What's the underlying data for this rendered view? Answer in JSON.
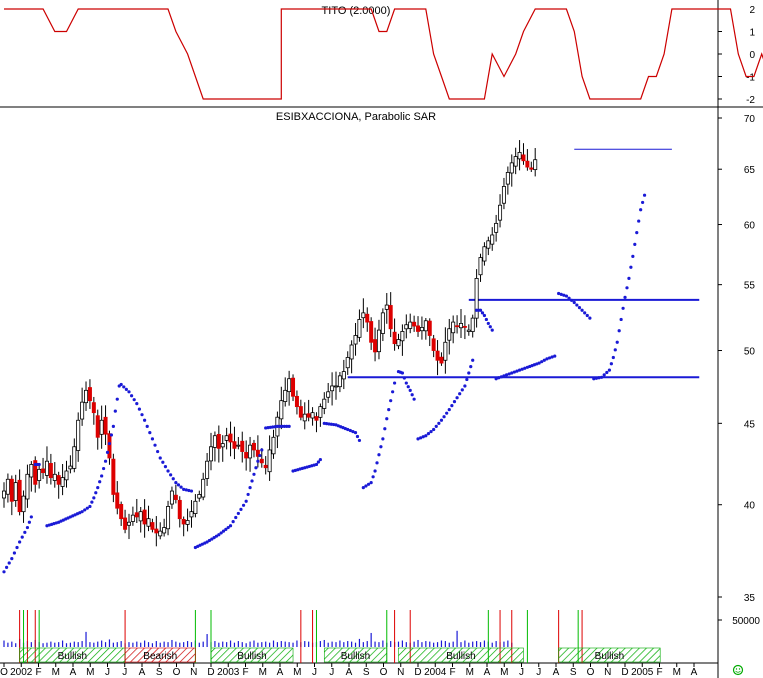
{
  "chart_data": [
    {
      "type": "line",
      "title": "TITO (2.0000)",
      "ylim": [
        -2.3,
        2.3
      ],
      "yticks": [
        "2",
        "1",
        "0",
        "-1",
        "-2"
      ],
      "grid": false,
      "series": [
        {
          "name": "",
          "color": "#cc0000",
          "points": [
            [
              0,
              2
            ],
            [
              10,
              2
            ],
            [
              13,
              1
            ],
            [
              16,
              1
            ],
            [
              19,
              2
            ],
            [
              42,
              2
            ],
            [
              44,
              1
            ],
            [
              47,
              0
            ],
            [
              51,
              -2
            ],
            [
              71,
              -2
            ],
            [
              71,
              2
            ],
            [
              94,
              2
            ],
            [
              96,
              1
            ],
            [
              98,
              1
            ],
            [
              100,
              2
            ],
            [
              108,
              2
            ],
            [
              110,
              0
            ],
            [
              112,
              -1
            ],
            [
              114,
              -2
            ],
            [
              123,
              -2
            ],
            [
              125,
              0
            ],
            [
              128,
              -1
            ],
            [
              131,
              0
            ],
            [
              133,
              1
            ],
            [
              136,
              2
            ],
            [
              144,
              2
            ],
            [
              146,
              1
            ],
            [
              148,
              -1
            ],
            [
              150,
              -2
            ],
            [
              163,
              -2
            ],
            [
              165,
              -1
            ],
            [
              167,
              -1
            ],
            [
              169,
              0
            ],
            [
              171,
              2
            ],
            [
              186,
              2
            ],
            [
              188,
              0
            ],
            [
              190,
              -1
            ],
            [
              192,
              -1
            ],
            [
              194,
              0
            ],
            [
              196,
              -1
            ],
            [
              198,
              -1
            ],
            [
              202,
              -2
            ],
            [
              214,
              -2
            ],
            [
              216,
              -1
            ],
            [
              218,
              2
            ],
            [
              227,
              2
            ],
            [
              227,
              -1
            ],
            [
              235,
              -1
            ],
            [
              238,
              -2
            ],
            [
              246,
              -2
            ],
            [
              248,
              -1
            ],
            [
              251,
              -1
            ],
            [
              255,
              2
            ],
            [
              274,
              2
            ]
          ]
        }
      ]
    },
    {
      "type": "candlestick",
      "title": "ESIBXACCIONA, Parabolic SAR",
      "ylabel": "",
      "ylim": [
        34,
        71
      ],
      "log_scale": true,
      "yticks": [
        "70",
        "65",
        "60",
        "55",
        "50",
        "45",
        "40",
        "35"
      ],
      "x_axis_labels": [
        "O",
        "2002",
        "F",
        "M",
        "A",
        "M",
        "J",
        "J",
        "A",
        "S",
        "O",
        "N",
        "D",
        "2003",
        "F",
        "M",
        "A",
        "M",
        "J",
        "J",
        "A",
        "S",
        "O",
        "N",
        "D",
        "2004",
        "F",
        "M",
        "A",
        "M",
        "J",
        "J",
        "A",
        "S",
        "O",
        "N",
        "D",
        "2005",
        "F",
        "M",
        "A"
      ],
      "x_axis_month_count": 43,
      "price_series": {
        "name": "",
        "colors": {
          "up": "#ffffff",
          "down": "#dd0000",
          "wick": "#000000"
        },
        "close_by_week": [
          40.8,
          41.5,
          40.2,
          41.3,
          39.6,
          40.5,
          41.8,
          42.4,
          41.2,
          42.1,
          41.9,
          42.6,
          41.6,
          41.8,
          41.2,
          41.6,
          42.0,
          42.3,
          43.5,
          45.2,
          46.4,
          47.2,
          46.5,
          45.7,
          44.1,
          45.2,
          44.3,
          42.8,
          40.6,
          39.8,
          39.2,
          38.6,
          39.0,
          39.4,
          39.3,
          39.6,
          38.9,
          39.2,
          38.6,
          38.4,
          38.5,
          38.7,
          39.9,
          40.8,
          40.3,
          39.2,
          38.9,
          39.1,
          39.6,
          40.2,
          40.6,
          41.5,
          42.6,
          43.5,
          44.2,
          43.4,
          43.7,
          44.2,
          43.8,
          43.4,
          43.6,
          43.2,
          42.8,
          43.6,
          43.3,
          42.9,
          42.5,
          42.2,
          43.3,
          44.1,
          45.4,
          46.5,
          47.2,
          48.0,
          46.8,
          46.1,
          45.4,
          45.6,
          45.4,
          45.7,
          45.2,
          46.1,
          46.6,
          47.1,
          47.5,
          47.5,
          48.2,
          48.5,
          49.5,
          50.4,
          51.1,
          52.3,
          52.8,
          52.1,
          50.6,
          49.9,
          51.5,
          52.8,
          53.4,
          51.6,
          50.5,
          50.8,
          51.4,
          51.9,
          52.1,
          51.8,
          51.4,
          51.7,
          52.2,
          51.1,
          50.0,
          49.3,
          49.1,
          50.6,
          51.6,
          52.1,
          51.8,
          52.0,
          51.7,
          51.5,
          52.4,
          55.5,
          57.2,
          58.1,
          58.6,
          59.1,
          60.1,
          61.7,
          63.4,
          64.7,
          65.6,
          66.2,
          66.6,
          65.8,
          65.2,
          65.0,
          65.9
        ]
      },
      "sar_series": {
        "name": "",
        "color": "#1a1ad6",
        "segments": [
          [
            [
              0,
              36.3
            ],
            [
              2,
              37.0
            ],
            [
              4,
              37.9
            ],
            [
              6,
              38.7
            ],
            [
              7,
              39.3
            ]
          ],
          [
            [
              8,
              42.4
            ],
            [
              9,
              42.4
            ]
          ],
          [
            [
              11,
              38.8
            ],
            [
              14,
              39.0
            ],
            [
              17,
              39.3
            ],
            [
              20,
              39.6
            ],
            [
              22,
              39.9
            ],
            [
              23,
              40.4
            ],
            [
              24,
              41.0
            ],
            [
              25,
              41.7
            ],
            [
              26,
              42.6
            ],
            [
              27,
              43.7
            ],
            [
              28,
              44.8
            ],
            [
              28.5,
              45.8
            ],
            [
              29,
              46.6
            ],
            [
              29.5,
              47.5
            ]
          ],
          [
            [
              30,
              47.6
            ],
            [
              32,
              47.1
            ],
            [
              34,
              46.3
            ],
            [
              36,
              45.2
            ],
            [
              38,
              44.0
            ],
            [
              40,
              42.8
            ],
            [
              42,
              42.0
            ],
            [
              44,
              41.3
            ],
            [
              46,
              40.9
            ],
            [
              48,
              40.8
            ]
          ],
          [
            [
              49,
              37.6
            ],
            [
              52,
              37.9
            ],
            [
              55,
              38.3
            ],
            [
              58,
              38.8
            ],
            [
              60,
              39.5
            ],
            [
              62,
              40.2
            ],
            [
              63,
              41.0
            ],
            [
              64,
              41.8
            ],
            [
              65,
              42.6
            ],
            [
              66,
              43.3
            ]
          ],
          [
            [
              67,
              44.7
            ],
            [
              70,
              44.8
            ],
            [
              73,
              44.8
            ]
          ],
          [
            [
              74,
              42.0
            ],
            [
              77,
              42.2
            ],
            [
              80,
              42.4
            ],
            [
              81,
              42.7
            ]
          ],
          [
            [
              82,
              45.0
            ],
            [
              85,
              44.9
            ],
            [
              88,
              44.6
            ],
            [
              90,
              44.4
            ],
            [
              91,
              43.9
            ]
          ],
          [
            [
              92,
              41.0
            ],
            [
              94,
              41.3
            ],
            [
              95,
              42.0
            ],
            [
              96,
              43.0
            ],
            [
              97,
              44.0
            ],
            [
              98,
              45.3
            ],
            [
              99,
              46.5
            ],
            [
              100,
              47.7
            ]
          ],
          [
            [
              101,
              48.5
            ],
            [
              102,
              48.4
            ],
            [
              103,
              47.7
            ],
            [
              104,
              47.2
            ],
            [
              105,
              46.6
            ]
          ],
          [
            [
              106,
              44.0
            ],
            [
              108,
              44.2
            ],
            [
              110,
              44.6
            ],
            [
              112,
              45.2
            ],
            [
              114,
              45.9
            ],
            [
              116,
              46.7
            ],
            [
              118,
              47.5
            ],
            [
              119,
              48.4
            ],
            [
              120,
              49.3
            ]
          ],
          [
            [
              121,
              53.0
            ],
            [
              122,
              53.0
            ],
            [
              123,
              52.6
            ],
            [
              124,
              52.0
            ],
            [
              125,
              51.5
            ]
          ],
          [
            [
              126,
              48.0
            ],
            [
              130,
              48.4
            ],
            [
              134,
              48.8
            ],
            [
              137,
              49.1
            ],
            [
              139,
              49.4
            ],
            [
              141,
              49.6
            ]
          ],
          [
            [
              142,
              54.3
            ],
            [
              144,
              54.1
            ],
            [
              146,
              53.6
            ],
            [
              148,
              53.0
            ],
            [
              150,
              52.4
            ]
          ],
          [
            [
              151,
              48.0
            ],
            [
              153,
              48.1
            ],
            [
              155,
              48.6
            ],
            [
              156,
              49.5
            ],
            [
              157,
              50.6
            ],
            [
              158,
              52.3
            ],
            [
              159,
              54.0
            ],
            [
              160,
              55.5
            ],
            [
              161,
              57.3
            ],
            [
              162,
              59.3
            ],
            [
              163,
              61.3
            ],
            [
              164,
              62.6
            ]
          ]
        ]
      },
      "horizontal_lines": [
        {
          "y": 66.9,
          "x_from": 146,
          "x_to": 171,
          "color": "#1a1ad6"
        },
        {
          "y": 53.8,
          "x_from": 119,
          "x_to": 178,
          "color": "#1a1ad6"
        },
        {
          "y": 48.1,
          "x_from": 88,
          "x_to": 178,
          "color": "#1a1ad6"
        }
      ]
    },
    {
      "type": "bar",
      "title": "",
      "ylim": [
        0,
        60000
      ],
      "yticks": [
        "50000"
      ],
      "volume_by_week_thousands": [
        12,
        8,
        10,
        7,
        15,
        8,
        11,
        9,
        13,
        9,
        7,
        8,
        10,
        8,
        9,
        12,
        7,
        8,
        10,
        9,
        11,
        28,
        9,
        8,
        10,
        12,
        9,
        14,
        8,
        9,
        11,
        7,
        9,
        8,
        10,
        8,
        12,
        9,
        7,
        11,
        8,
        10,
        9,
        13,
        10,
        8,
        9,
        11,
        9,
        12,
        8,
        10,
        24,
        9,
        11,
        8,
        10,
        9,
        12,
        8,
        11,
        9,
        7,
        10,
        12,
        8,
        9,
        10,
        8,
        12,
        9,
        11,
        10,
        9,
        8,
        12,
        9,
        11,
        10,
        8,
        9,
        11,
        13,
        8,
        10,
        9,
        12,
        9,
        11,
        10,
        8,
        15,
        9,
        11,
        26,
        10,
        9,
        12,
        8,
        11,
        9,
        10,
        12,
        9,
        8,
        10,
        13,
        9,
        11,
        10,
        8,
        9,
        12,
        11,
        8,
        10,
        30,
        9,
        12,
        8,
        10,
        11,
        9,
        12,
        10,
        8,
        11,
        9,
        10,
        12,
        8
      ],
      "colors": {
        "bar": "#1a1ad6"
      }
    }
  ],
  "signal_band": {
    "segments": [
      {
        "label": "Bullish",
        "type": "bullish",
        "from": 4,
        "to": 31
      },
      {
        "label": "Bearish",
        "type": "bearish",
        "from": 31,
        "to": 49
      },
      {
        "label": "Bullish",
        "type": "bullish",
        "from": 53,
        "to": 74
      },
      {
        "label": "Bullish",
        "type": "bullish",
        "from": 82,
        "to": 98
      },
      {
        "label": "Bullish",
        "type": "bullish",
        "from": 101,
        "to": 133
      },
      {
        "label": "Bullish",
        "type": "bullish",
        "from": 142,
        "to": 168
      }
    ],
    "colors": {
      "bullish": "#00aa00",
      "bearish": "#cc0000"
    }
  },
  "signal_markers": {
    "red_x": [
      4,
      6,
      8,
      31,
      76,
      79,
      100,
      104,
      127,
      130,
      142,
      148
    ],
    "green_x": [
      5,
      9,
      49,
      53,
      80,
      98,
      124,
      134,
      147
    ]
  },
  "footer_icon": "green-smiley-icon"
}
